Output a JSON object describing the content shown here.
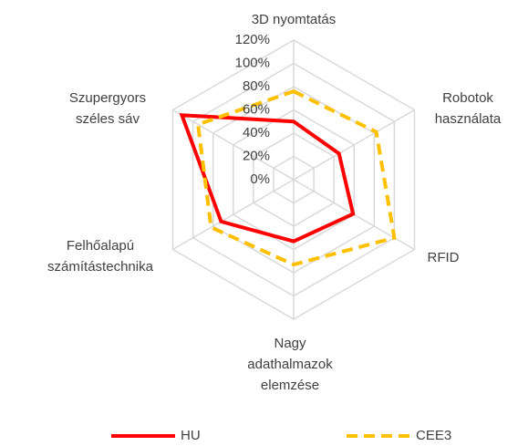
{
  "chart_data": {
    "type": "radar",
    "categories": [
      [
        "3D nyomtatás"
      ],
      [
        "Robotok",
        "használata"
      ],
      [
        "RFID"
      ],
      [
        "Nagy",
        "adathalmazok",
        "elemzése"
      ],
      [
        "Felhőalapú",
        "számítástechnika"
      ],
      [
        "Szupergyors",
        "széles sáv"
      ]
    ],
    "series": [
      {
        "name": "HU",
        "color": "#ff0000",
        "values": [
          50,
          45,
          59,
          53,
          72,
          111
        ]
      },
      {
        "name": "CEE3",
        "color": "#ffc000",
        "values": [
          76,
          82,
          100,
          73,
          82,
          95
        ]
      }
    ],
    "ylim": [
      0,
      120
    ],
    "yticks": [
      {
        "value": 0,
        "label": "0%"
      },
      {
        "value": 20,
        "label": "20%"
      },
      {
        "value": 40,
        "label": "40%"
      },
      {
        "value": 60,
        "label": "60%"
      },
      {
        "value": 80,
        "label": "80%"
      },
      {
        "value": 100,
        "label": "100%"
      },
      {
        "value": 120,
        "label": "120%"
      }
    ],
    "grid": true,
    "legend": "bottom"
  }
}
